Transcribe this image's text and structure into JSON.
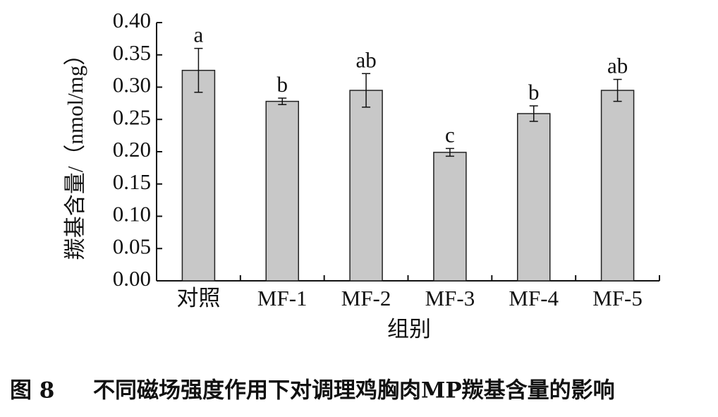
{
  "chart_data": {
    "type": "bar",
    "figure_label": "图 8",
    "title": "不同磁场强度作用下对调理鸡胸肉MP羰基含量的影响",
    "x_label": "组别",
    "y_label": "羰基含量/（nmol/mg）",
    "categories": [
      "对照",
      "MF-1",
      "MF-2",
      "MF-3",
      "MF-4",
      "MF-5"
    ],
    "values": [
      0.326,
      0.278,
      0.295,
      0.199,
      0.259,
      0.295
    ],
    "errors": [
      0.034,
      0.005,
      0.026,
      0.006,
      0.012,
      0.017
    ],
    "annotations": [
      "a",
      "b",
      "ab",
      "c",
      "b",
      "ab"
    ],
    "color": "#c8c8c8",
    "ylim": [
      0,
      0.4
    ],
    "yticks": [
      {
        "value": 0,
        "label": "0.00"
      },
      {
        "value": 0.05,
        "label": "0.05"
      },
      {
        "value": 0.1,
        "label": "0.10"
      },
      {
        "value": 0.15,
        "label": "0.15"
      },
      {
        "value": 0.2,
        "label": "0.20"
      },
      {
        "value": 0.25,
        "label": "0.25"
      },
      {
        "value": 0.3,
        "label": "0.30"
      },
      {
        "value": 0.35,
        "label": "0.35"
      },
      {
        "value": 0.4,
        "label": "0.40"
      }
    ]
  }
}
